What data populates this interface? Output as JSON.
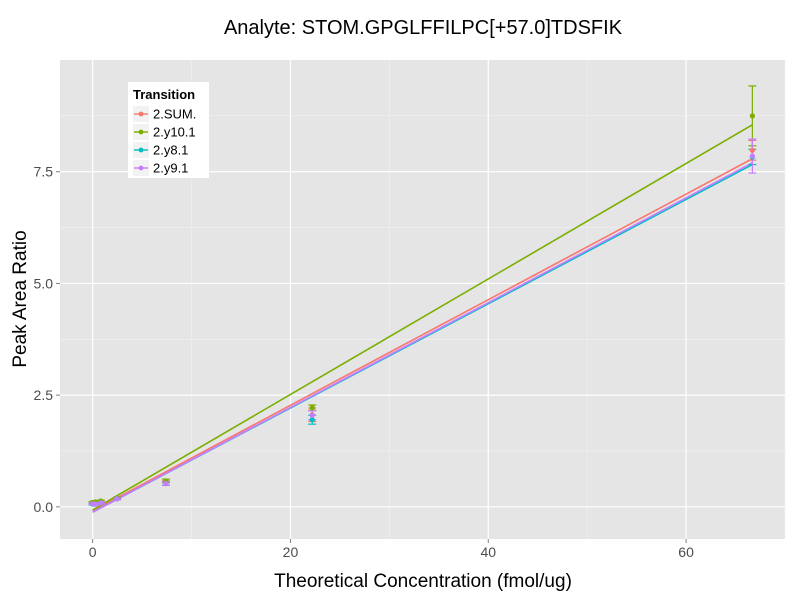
{
  "chart_data": {
    "type": "scatter",
    "title": "Analyte: STOM.GPGLFFILPC[+57.0]TDSFIK",
    "xlabel": "Theoretical Concentration (fmol/ug)",
    "ylabel": "Peak Area Ratio",
    "xlim": [
      -3.3,
      70.0
    ],
    "ylim": [
      -0.72,
      10.0
    ],
    "x_ticks": [
      0,
      20,
      40,
      60
    ],
    "y_ticks": [
      0.0,
      2.5,
      5.0,
      7.5
    ],
    "x_tick_labels": [
      "0",
      "20",
      "40",
      "60"
    ],
    "y_tick_labels": [
      "0.0",
      "2.5",
      "5.0",
      "7.5"
    ],
    "grid": true,
    "legend": {
      "title": "Transition",
      "position": "top-left"
    },
    "series": [
      {
        "name": "2.SUM.",
        "color": "#F8766D",
        "fit": {
          "x0": 0,
          "y0": -0.09,
          "x1": 66.7,
          "y1": 7.79
        },
        "points": [
          {
            "x": 0.0,
            "y": 0.08,
            "err": 0.02
          },
          {
            "x": 0.27,
            "y": 0.07,
            "err": 0.02
          },
          {
            "x": 0.82,
            "y": 0.1,
            "err": 0.02
          },
          {
            "x": 2.47,
            "y": 0.19,
            "err": 0.02
          },
          {
            "x": 7.41,
            "y": 0.53,
            "err": 0.05
          },
          {
            "x": 22.2,
            "y": 2.06,
            "err": 0.15
          },
          {
            "x": 66.7,
            "y": 7.98,
            "err": 0.22
          }
        ]
      },
      {
        "name": "2.y10.1",
        "color": "#7CAE00",
        "fit": {
          "x0": 0,
          "y0": -0.07,
          "x1": 66.7,
          "y1": 8.55
        },
        "points": [
          {
            "x": 0.0,
            "y": 0.1,
            "err": 0.02
          },
          {
            "x": 0.27,
            "y": 0.11,
            "err": 0.02
          },
          {
            "x": 0.82,
            "y": 0.13,
            "err": 0.02
          },
          {
            "x": 2.47,
            "y": 0.2,
            "err": 0.02
          },
          {
            "x": 7.41,
            "y": 0.58,
            "err": 0.04
          },
          {
            "x": 22.2,
            "y": 2.22,
            "err": 0.06
          },
          {
            "x": 66.7,
            "y": 8.75,
            "err": 0.67
          }
        ]
      },
      {
        "name": "2.y8.1",
        "color": "#00BFC4",
        "fit": {
          "x0": 0,
          "y0": -0.12,
          "x1": 66.7,
          "y1": 7.66
        },
        "points": [
          {
            "x": 0.0,
            "y": 0.06,
            "err": 0.02
          },
          {
            "x": 0.27,
            "y": 0.06,
            "err": 0.02
          },
          {
            "x": 0.82,
            "y": 0.09,
            "err": 0.02
          },
          {
            "x": 2.47,
            "y": 0.18,
            "err": 0.02
          },
          {
            "x": 7.41,
            "y": 0.52,
            "err": 0.04
          },
          {
            "x": 22.2,
            "y": 1.95,
            "err": 0.1
          },
          {
            "x": 66.7,
            "y": 7.83,
            "err": 0.17
          }
        ]
      },
      {
        "name": "2.y9.1",
        "color": "#C77CFF",
        "fit": {
          "x0": 0,
          "y0": -0.12,
          "x1": 66.7,
          "y1": 7.7
        },
        "points": [
          {
            "x": 0.0,
            "y": 0.07,
            "err": 0.02
          },
          {
            "x": 0.27,
            "y": 0.06,
            "err": 0.02
          },
          {
            "x": 0.82,
            "y": 0.09,
            "err": 0.02
          },
          {
            "x": 2.47,
            "y": 0.18,
            "err": 0.02
          },
          {
            "x": 7.41,
            "y": 0.52,
            "err": 0.04
          },
          {
            "x": 22.2,
            "y": 2.05,
            "err": 0.1
          },
          {
            "x": 66.7,
            "y": 7.85,
            "err": 0.38
          }
        ]
      }
    ]
  }
}
